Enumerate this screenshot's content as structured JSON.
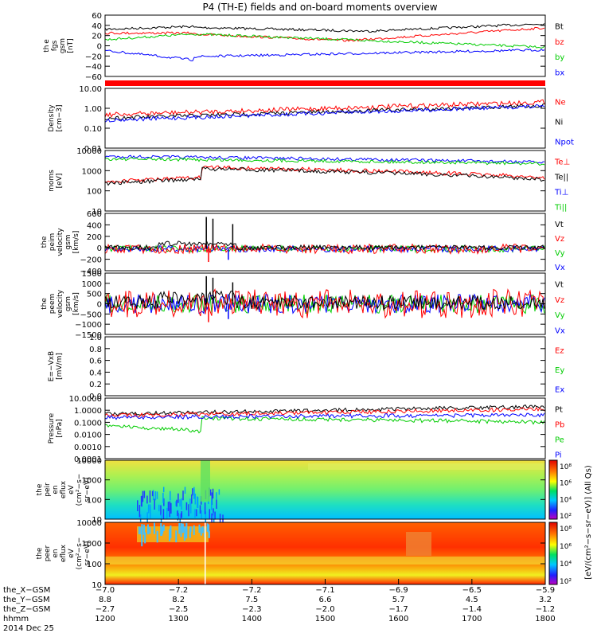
{
  "title": "P4 (TH-E) fields and on-board moments overview",
  "colors": {
    "black": "#000000",
    "red": "#ff0000",
    "green": "#00cc00",
    "blue": "#0000ff"
  },
  "chart_data": [
    {
      "id": "fgs",
      "type": "line",
      "ylabel": [
        "th e",
        "fgs",
        "gsm",
        "[nT]"
      ],
      "yticks": [
        "60",
        "40",
        "20",
        "0",
        "−20",
        "−40",
        "−60"
      ],
      "ylim": [
        -70,
        60
      ],
      "scale": "linear",
      "legend": [
        {
          "name": "Bt",
          "color": "black"
        },
        {
          "name": "bz",
          "color": "red"
        },
        {
          "name": "by",
          "color": "green"
        },
        {
          "name": "bx",
          "color": "blue"
        }
      ]
    },
    {
      "id": "density",
      "type": "line",
      "ylabel": [
        "Density",
        "[cm−3]"
      ],
      "yticks": [
        "10.00",
        "1.00",
        "0.10",
        "0.01"
      ],
      "ylim": [
        0.01,
        20
      ],
      "scale": "log",
      "legend": [
        {
          "name": "Ne",
          "color": "red"
        },
        {
          "name": "Ni",
          "color": "black"
        },
        {
          "name": "Npot",
          "color": "blue"
        }
      ]
    },
    {
      "id": "temperature",
      "type": "line",
      "ylabel": [
        "moms",
        "[eV]"
      ],
      "yticks": [
        "10000",
        "1000",
        "100",
        "10"
      ],
      "ylim": [
        10,
        12000
      ],
      "scale": "log",
      "legend": [
        {
          "name": "Te⊥",
          "color": "red"
        },
        {
          "name": "Te||",
          "color": "black"
        },
        {
          "name": "Ti⊥",
          "color": "blue"
        },
        {
          "name": "Ti||",
          "color": "green"
        }
      ]
    },
    {
      "id": "vpeim",
      "type": "line",
      "ylabel": [
        "the",
        "peim",
        "velocity",
        "gsm",
        "[km/s]"
      ],
      "yticks": [
        "600",
        "400",
        "200",
        "0",
        "−200",
        "−400"
      ],
      "ylim": [
        -400,
        650
      ],
      "scale": "linear",
      "legend": [
        {
          "name": "Vt",
          "color": "black"
        },
        {
          "name": "Vz",
          "color": "red"
        },
        {
          "name": "Vy",
          "color": "green"
        },
        {
          "name": "Vx",
          "color": "blue"
        }
      ]
    },
    {
      "id": "vpeem",
      "type": "line",
      "ylabel": [
        "the",
        "peem",
        "velocity",
        "gsm",
        "[km/s]"
      ],
      "yticks": [
        "1500",
        "1000",
        "500",
        "0",
        "−500",
        "−1000",
        "−1500"
      ],
      "ylim": [
        -1500,
        1500
      ],
      "scale": "linear",
      "legend": [
        {
          "name": "Vt",
          "color": "black"
        },
        {
          "name": "Vz",
          "color": "red"
        },
        {
          "name": "Vy",
          "color": "green"
        },
        {
          "name": "Vx",
          "color": "blue"
        }
      ]
    },
    {
      "id": "efield",
      "type": "line",
      "ylabel": [
        "E=−VxB",
        "[mV/m]"
      ],
      "yticks": [
        "1.0",
        "0.8",
        "0.6",
        "0.4",
        "0.2",
        "0.0"
      ],
      "ylim": [
        0,
        1
      ],
      "scale": "linear",
      "legend": [
        {
          "name": "Ez",
          "color": "red"
        },
        {
          "name": "Ey",
          "color": "green"
        },
        {
          "name": "Ex",
          "color": "blue"
        }
      ]
    },
    {
      "id": "pressure",
      "type": "line",
      "ylabel": [
        "Pressure",
        "[nPa]"
      ],
      "yticks": [
        "10.0000",
        "1.0000",
        "0.1000",
        "0.0100",
        "0.0010",
        "0.0001"
      ],
      "ylim": [
        0.0001,
        10
      ],
      "scale": "log",
      "legend": [
        {
          "name": "Pt",
          "color": "black"
        },
        {
          "name": "Pb",
          "color": "red"
        },
        {
          "name": "Pe",
          "color": "green"
        },
        {
          "name": "Pi",
          "color": "blue"
        }
      ]
    },
    {
      "id": "peir_eflux",
      "type": "heatmap",
      "ylabel": [
        "the",
        "peir",
        "en",
        "eflux",
        "eV",
        "(cm²−s−",
        "sr−eV)"
      ],
      "yticks": [
        "10000",
        "1000",
        "100",
        "10"
      ],
      "ylim": [
        5,
        30000
      ],
      "scale": "log"
    },
    {
      "id": "peer_eflux",
      "type": "heatmap",
      "ylabel": [
        "the",
        "peer",
        "en",
        "eflux",
        "eV",
        "(cm²−s−",
        "sr−eV)"
      ],
      "yticks": [
        "10000",
        "1000",
        "100",
        "10"
      ],
      "ylim": [
        5,
        30000
      ],
      "scale": "log"
    }
  ],
  "colorbar": {
    "label": "[eV/(cm²−s−sr−eV)] (All Qs)",
    "top_ticks": [
      "10⁸",
      "10⁶",
      "10⁴",
      "10²"
    ],
    "bottom_ticks": [
      "10⁸",
      "10⁶",
      "10⁴",
      "10²"
    ]
  },
  "xaxis": {
    "row_labels": [
      "the_X−GSM",
      "the_Y−GSM",
      "the_Z−GSM",
      "hhmm",
      "2014 Dec 25"
    ],
    "ticks": [
      {
        "x": "−7.0",
        "y": "8.8",
        "z": "−2.7",
        "t": "1200"
      },
      {
        "x": "−7.2",
        "y": "8.2",
        "z": "−2.5",
        "t": "1300"
      },
      {
        "x": "−7.2",
        "y": "7.5",
        "z": "−2.3",
        "t": "1400"
      },
      {
        "x": "−7.1",
        "y": "6.6",
        "z": "−2.0",
        "t": "1500"
      },
      {
        "x": "−6.9",
        "y": "5.7",
        "z": "−1.7",
        "t": "1600"
      },
      {
        "x": "−6.5",
        "y": "4.5",
        "z": "−1.4",
        "t": "1700"
      },
      {
        "x": "−5.9",
        "y": "3.2",
        "z": "−1.2",
        "t": "1800"
      }
    ],
    "time_range": [
      1200,
      1800
    ]
  }
}
